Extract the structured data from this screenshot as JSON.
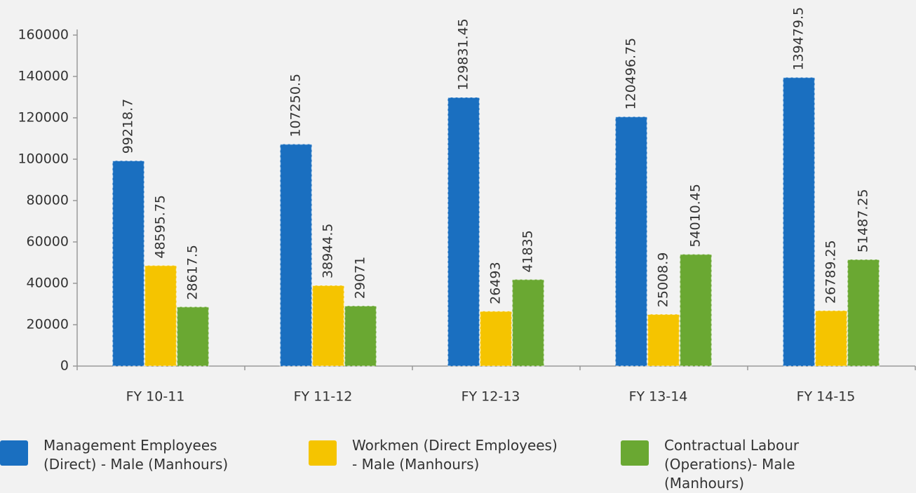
{
  "chart_data": {
    "type": "bar",
    "categories": [
      "FY 10-11",
      "FY 11-12",
      "FY 12-13",
      "FY 13-14",
      "FY 14-15"
    ],
    "series": [
      {
        "name": "Management Employees (Direct) - Male (Manhours)",
        "color": "#1a6fc0",
        "values": [
          99218.7,
          107250.5,
          129831.45,
          120496.75,
          139479.5
        ]
      },
      {
        "name": "Workmen (Direct Employees) - Male (Manhours)",
        "color": "#f5c400",
        "values": [
          48595.75,
          38944.5,
          26493,
          25008.9,
          26789.25
        ]
      },
      {
        "name": "Contractual Labour (Operations)- Male (Manhours)",
        "color": "#6aa832",
        "values": [
          28617.5,
          29071,
          41835,
          54010.45,
          51487.25
        ]
      }
    ],
    "ylim": [
      0,
      160000
    ],
    "yticks": [
      0,
      20000,
      40000,
      60000,
      80000,
      100000,
      120000,
      140000,
      160000
    ],
    "grid": false
  }
}
